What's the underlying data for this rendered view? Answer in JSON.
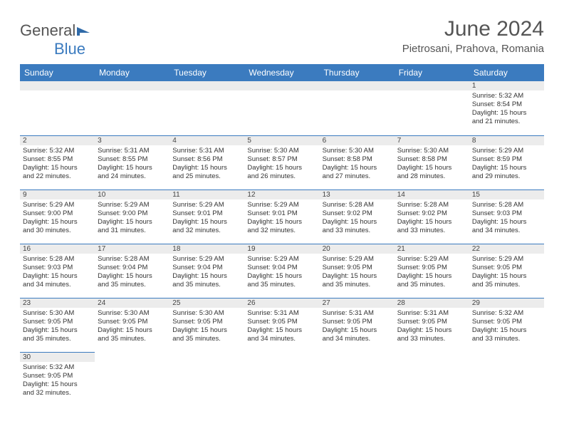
{
  "logo": {
    "text1": "General",
    "text2": "Blue"
  },
  "title": "June 2024",
  "location": "Pietrosani, Prahova, Romania",
  "weekdays": [
    "Sunday",
    "Monday",
    "Tuesday",
    "Wednesday",
    "Thursday",
    "Friday",
    "Saturday"
  ],
  "colors": {
    "header_bg": "#3b7bbf",
    "header_text": "#ffffff",
    "daynum_bg": "#ececec",
    "rule": "#3b7bbf",
    "body_text": "#333333",
    "title_text": "#555555"
  },
  "weeks": [
    [
      null,
      null,
      null,
      null,
      null,
      null,
      {
        "n": "1",
        "sr": "Sunrise: 5:32 AM",
        "ss": "Sunset: 8:54 PM",
        "d1": "Daylight: 15 hours",
        "d2": "and 21 minutes."
      }
    ],
    [
      {
        "n": "2",
        "sr": "Sunrise: 5:32 AM",
        "ss": "Sunset: 8:55 PM",
        "d1": "Daylight: 15 hours",
        "d2": "and 22 minutes."
      },
      {
        "n": "3",
        "sr": "Sunrise: 5:31 AM",
        "ss": "Sunset: 8:55 PM",
        "d1": "Daylight: 15 hours",
        "d2": "and 24 minutes."
      },
      {
        "n": "4",
        "sr": "Sunrise: 5:31 AM",
        "ss": "Sunset: 8:56 PM",
        "d1": "Daylight: 15 hours",
        "d2": "and 25 minutes."
      },
      {
        "n": "5",
        "sr": "Sunrise: 5:30 AM",
        "ss": "Sunset: 8:57 PM",
        "d1": "Daylight: 15 hours",
        "d2": "and 26 minutes."
      },
      {
        "n": "6",
        "sr": "Sunrise: 5:30 AM",
        "ss": "Sunset: 8:58 PM",
        "d1": "Daylight: 15 hours",
        "d2": "and 27 minutes."
      },
      {
        "n": "7",
        "sr": "Sunrise: 5:30 AM",
        "ss": "Sunset: 8:58 PM",
        "d1": "Daylight: 15 hours",
        "d2": "and 28 minutes."
      },
      {
        "n": "8",
        "sr": "Sunrise: 5:29 AM",
        "ss": "Sunset: 8:59 PM",
        "d1": "Daylight: 15 hours",
        "d2": "and 29 minutes."
      }
    ],
    [
      {
        "n": "9",
        "sr": "Sunrise: 5:29 AM",
        "ss": "Sunset: 9:00 PM",
        "d1": "Daylight: 15 hours",
        "d2": "and 30 minutes."
      },
      {
        "n": "10",
        "sr": "Sunrise: 5:29 AM",
        "ss": "Sunset: 9:00 PM",
        "d1": "Daylight: 15 hours",
        "d2": "and 31 minutes."
      },
      {
        "n": "11",
        "sr": "Sunrise: 5:29 AM",
        "ss": "Sunset: 9:01 PM",
        "d1": "Daylight: 15 hours",
        "d2": "and 32 minutes."
      },
      {
        "n": "12",
        "sr": "Sunrise: 5:29 AM",
        "ss": "Sunset: 9:01 PM",
        "d1": "Daylight: 15 hours",
        "d2": "and 32 minutes."
      },
      {
        "n": "13",
        "sr": "Sunrise: 5:28 AM",
        "ss": "Sunset: 9:02 PM",
        "d1": "Daylight: 15 hours",
        "d2": "and 33 minutes."
      },
      {
        "n": "14",
        "sr": "Sunrise: 5:28 AM",
        "ss": "Sunset: 9:02 PM",
        "d1": "Daylight: 15 hours",
        "d2": "and 33 minutes."
      },
      {
        "n": "15",
        "sr": "Sunrise: 5:28 AM",
        "ss": "Sunset: 9:03 PM",
        "d1": "Daylight: 15 hours",
        "d2": "and 34 minutes."
      }
    ],
    [
      {
        "n": "16",
        "sr": "Sunrise: 5:28 AM",
        "ss": "Sunset: 9:03 PM",
        "d1": "Daylight: 15 hours",
        "d2": "and 34 minutes."
      },
      {
        "n": "17",
        "sr": "Sunrise: 5:28 AM",
        "ss": "Sunset: 9:04 PM",
        "d1": "Daylight: 15 hours",
        "d2": "and 35 minutes."
      },
      {
        "n": "18",
        "sr": "Sunrise: 5:29 AM",
        "ss": "Sunset: 9:04 PM",
        "d1": "Daylight: 15 hours",
        "d2": "and 35 minutes."
      },
      {
        "n": "19",
        "sr": "Sunrise: 5:29 AM",
        "ss": "Sunset: 9:04 PM",
        "d1": "Daylight: 15 hours",
        "d2": "and 35 minutes."
      },
      {
        "n": "20",
        "sr": "Sunrise: 5:29 AM",
        "ss": "Sunset: 9:05 PM",
        "d1": "Daylight: 15 hours",
        "d2": "and 35 minutes."
      },
      {
        "n": "21",
        "sr": "Sunrise: 5:29 AM",
        "ss": "Sunset: 9:05 PM",
        "d1": "Daylight: 15 hours",
        "d2": "and 35 minutes."
      },
      {
        "n": "22",
        "sr": "Sunrise: 5:29 AM",
        "ss": "Sunset: 9:05 PM",
        "d1": "Daylight: 15 hours",
        "d2": "and 35 minutes."
      }
    ],
    [
      {
        "n": "23",
        "sr": "Sunrise: 5:30 AM",
        "ss": "Sunset: 9:05 PM",
        "d1": "Daylight: 15 hours",
        "d2": "and 35 minutes."
      },
      {
        "n": "24",
        "sr": "Sunrise: 5:30 AM",
        "ss": "Sunset: 9:05 PM",
        "d1": "Daylight: 15 hours",
        "d2": "and 35 minutes."
      },
      {
        "n": "25",
        "sr": "Sunrise: 5:30 AM",
        "ss": "Sunset: 9:05 PM",
        "d1": "Daylight: 15 hours",
        "d2": "and 35 minutes."
      },
      {
        "n": "26",
        "sr": "Sunrise: 5:31 AM",
        "ss": "Sunset: 9:05 PM",
        "d1": "Daylight: 15 hours",
        "d2": "and 34 minutes."
      },
      {
        "n": "27",
        "sr": "Sunrise: 5:31 AM",
        "ss": "Sunset: 9:05 PM",
        "d1": "Daylight: 15 hours",
        "d2": "and 34 minutes."
      },
      {
        "n": "28",
        "sr": "Sunrise: 5:31 AM",
        "ss": "Sunset: 9:05 PM",
        "d1": "Daylight: 15 hours",
        "d2": "and 33 minutes."
      },
      {
        "n": "29",
        "sr": "Sunrise: 5:32 AM",
        "ss": "Sunset: 9:05 PM",
        "d1": "Daylight: 15 hours",
        "d2": "and 33 minutes."
      }
    ],
    [
      {
        "n": "30",
        "sr": "Sunrise: 5:32 AM",
        "ss": "Sunset: 9:05 PM",
        "d1": "Daylight: 15 hours",
        "d2": "and 32 minutes."
      },
      null,
      null,
      null,
      null,
      null,
      null
    ]
  ]
}
